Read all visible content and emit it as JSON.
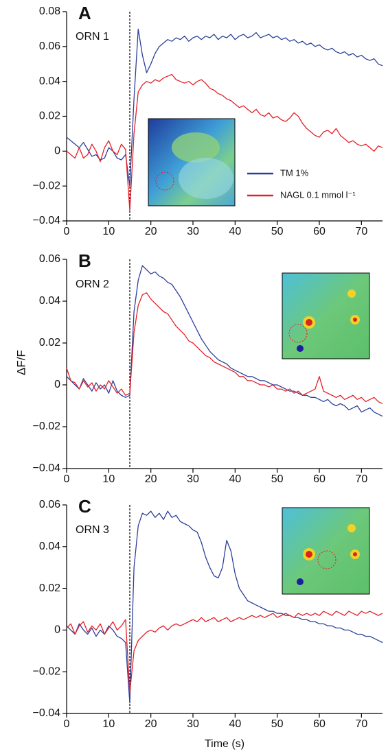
{
  "chart_data": [
    {
      "type": "line",
      "panel_label": "A",
      "annotation": "ORN 1",
      "x": [
        0,
        1,
        2,
        3,
        4,
        5,
        6,
        7,
        8,
        9,
        10,
        11,
        12,
        13,
        14,
        15,
        16,
        17,
        18,
        19,
        20,
        21,
        22,
        23,
        24,
        25,
        26,
        27,
        28,
        29,
        30,
        31,
        32,
        33,
        34,
        35,
        36,
        37,
        38,
        39,
        40,
        41,
        42,
        43,
        44,
        45,
        46,
        47,
        48,
        49,
        50,
        51,
        52,
        53,
        54,
        55,
        56,
        57,
        58,
        59,
        60,
        61,
        62,
        63,
        64,
        65,
        66,
        67,
        68,
        69,
        70,
        71,
        72,
        73,
        74,
        75
      ],
      "xlim": [
        0,
        75
      ],
      "xticks": [
        0,
        10,
        20,
        30,
        40,
        50,
        60,
        70
      ],
      "ylim": [
        -0.04,
        0.08
      ],
      "yticks": [
        {
          "value": -0.04,
          "label": "−0.04"
        },
        {
          "value": -0.02,
          "label": "−0.02"
        },
        0,
        0.02,
        0.04,
        0.06,
        0.08
      ],
      "vline": 15,
      "series": [
        {
          "name": "TM 1%",
          "color": "#2a3f9a",
          "values": [
            0.008,
            0.006,
            0.004,
            0.002,
            0.005,
            0.001,
            -0.003,
            -0.002,
            -0.005,
            -0.004,
            0.002,
            0,
            -0.004,
            -0.005,
            -0.002,
            -0.02,
            0.03,
            0.07,
            0.055,
            0.045,
            0.05,
            0.056,
            0.06,
            0.062,
            0.064,
            0.063,
            0.065,
            0.064,
            0.066,
            0.063,
            0.065,
            0.066,
            0.064,
            0.066,
            0.065,
            0.067,
            0.064,
            0.066,
            0.065,
            0.067,
            0.064,
            0.066,
            0.067,
            0.065,
            0.066,
            0.068,
            0.065,
            0.066,
            0.067,
            0.065,
            0.066,
            0.064,
            0.065,
            0.063,
            0.064,
            0.062,
            0.063,
            0.061,
            0.062,
            0.06,
            0.061,
            0.059,
            0.058,
            0.059,
            0.057,
            0.056,
            0.057,
            0.055,
            0.056,
            0.054,
            0.055,
            0.053,
            0.052,
            0.053,
            0.05,
            0.049
          ]
        },
        {
          "name": "NAGL 0.1 mmol l⁻¹",
          "color": "#e41e26",
          "values": [
            0,
            -0.002,
            -0.004,
            0.002,
            -0.004,
            -0.002,
            0.004,
            0,
            -0.006,
            0.002,
            0.006,
            0,
            -0.002,
            0.004,
            0.001,
            -0.034,
            0.01,
            0.034,
            0.038,
            0.04,
            0.039,
            0.041,
            0.04,
            0.042,
            0.043,
            0.044,
            0.041,
            0.04,
            0.039,
            0.04,
            0.038,
            0.04,
            0.041,
            0.039,
            0.036,
            0.035,
            0.033,
            0.032,
            0.03,
            0.029,
            0.027,
            0.025,
            0.026,
            0.024,
            0.022,
            0.024,
            0.021,
            0.02,
            0.022,
            0.019,
            0.02,
            0.018,
            0.017,
            0.019,
            0.022,
            0.02,
            0.016,
            0.013,
            0.011,
            0.009,
            0.008,
            0.011,
            0.012,
            0.01,
            0.013,
            0.009,
            0.007,
            0.005,
            0.006,
            0.004,
            0.003,
            0.004,
            0.002,
            0,
            0.003,
            0.002
          ]
        }
      ]
    },
    {
      "type": "line",
      "panel_label": "B",
      "annotation": "ORN 2",
      "ylabel": "ΔF/F",
      "x": [
        0,
        1,
        2,
        3,
        4,
        5,
        6,
        7,
        8,
        9,
        10,
        11,
        12,
        13,
        14,
        15,
        16,
        17,
        18,
        19,
        20,
        21,
        22,
        23,
        24,
        25,
        26,
        27,
        28,
        29,
        30,
        31,
        32,
        33,
        34,
        35,
        36,
        37,
        38,
        39,
        40,
        41,
        42,
        43,
        44,
        45,
        46,
        47,
        48,
        49,
        50,
        51,
        52,
        53,
        54,
        55,
        56,
        57,
        58,
        59,
        60,
        61,
        62,
        63,
        64,
        65,
        66,
        67,
        68,
        69,
        70,
        71,
        72,
        73,
        74,
        75
      ],
      "xlim": [
        0,
        75
      ],
      "xticks": [
        0,
        10,
        20,
        30,
        40,
        50,
        60,
        70
      ],
      "ylim": [
        -0.04,
        0.06
      ],
      "yticks": [
        {
          "value": -0.04,
          "label": "−0.04"
        },
        {
          "value": -0.02,
          "label": "−0.02"
        },
        0,
        0.02,
        0.04,
        0.06
      ],
      "vline": 15,
      "series": [
        {
          "color": "#2a3f9a",
          "values": [
            0.004,
            0.002,
            0,
            -0.002,
            0.003,
            0,
            -0.003,
            0.001,
            -0.002,
            0,
            -0.004,
            0.002,
            -0.003,
            -0.005,
            -0.006,
            -0.005,
            0.035,
            0.05,
            0.057,
            0.055,
            0.053,
            0.054,
            0.052,
            0.051,
            0.049,
            0.048,
            0.045,
            0.042,
            0.038,
            0.034,
            0.03,
            0.026,
            0.022,
            0.019,
            0.016,
            0.014,
            0.012,
            0.011,
            0.01,
            0.008,
            0.007,
            0.006,
            0.005,
            0.004,
            0.004,
            0.003,
            0.002,
            0.002,
            0.001,
            0,
            0,
            -0.001,
            -0.002,
            -0.003,
            -0.003,
            -0.004,
            -0.005,
            -0.005,
            -0.006,
            -0.006,
            -0.007,
            -0.008,
            -0.007,
            -0.009,
            -0.01,
            -0.009,
            -0.01,
            -0.012,
            -0.011,
            -0.01,
            -0.013,
            -0.012,
            -0.011,
            -0.013,
            -0.014,
            -0.015
          ]
        },
        {
          "color": "#e41e26",
          "values": [
            0.008,
            0.002,
            0.001,
            -0.002,
            0.002,
            -0.001,
            0.001,
            -0.003,
            0,
            -0.002,
            0.002,
            -0.001,
            -0.004,
            -0.002,
            -0.005,
            -0.004,
            0.025,
            0.038,
            0.043,
            0.044,
            0.041,
            0.039,
            0.037,
            0.035,
            0.034,
            0.031,
            0.028,
            0.026,
            0.024,
            0.021,
            0.02,
            0.018,
            0.016,
            0.014,
            0.013,
            0.011,
            0.01,
            0.009,
            0.008,
            0.007,
            0.006,
            0.004,
            0.004,
            0.002,
            0.002,
            0.001,
            0,
            0,
            -0.001,
            0,
            -0.002,
            -0.002,
            -0.003,
            -0.002,
            -0.004,
            -0.003,
            -0.005,
            -0.004,
            -0.003,
            -0.002,
            0.004,
            -0.003,
            -0.004,
            -0.005,
            -0.006,
            -0.005,
            -0.007,
            -0.006,
            -0.005,
            -0.007,
            -0.006,
            -0.008,
            -0.007,
            -0.006,
            -0.008,
            -0.009
          ]
        }
      ]
    },
    {
      "type": "line",
      "panel_label": "C",
      "annotation": "ORN 3",
      "xlabel": "Time (s)",
      "x": [
        0,
        1,
        2,
        3,
        4,
        5,
        6,
        7,
        8,
        9,
        10,
        11,
        12,
        13,
        14,
        15,
        16,
        17,
        18,
        19,
        20,
        21,
        22,
        23,
        24,
        25,
        26,
        27,
        28,
        29,
        30,
        31,
        32,
        33,
        34,
        35,
        36,
        37,
        38,
        39,
        40,
        41,
        42,
        43,
        44,
        45,
        46,
        47,
        48,
        49,
        50,
        51,
        52,
        53,
        54,
        55,
        56,
        57,
        58,
        59,
        60,
        61,
        62,
        63,
        64,
        65,
        66,
        67,
        68,
        69,
        70,
        71,
        72,
        73,
        74,
        75
      ],
      "xlim": [
        0,
        75
      ],
      "xticks": [
        0,
        10,
        20,
        30,
        40,
        50,
        60,
        70
      ],
      "ylim": [
        -0.04,
        0.06
      ],
      "yticks": [
        {
          "value": -0.04,
          "label": "−0.04"
        },
        {
          "value": -0.02,
          "label": "−0.02"
        },
        0,
        0.02,
        0.04,
        0.06
      ],
      "vline": 15,
      "series": [
        {
          "color": "#2a3f9a",
          "values": [
            0.002,
            0,
            -0.002,
            0.003,
            0,
            -0.002,
            0.001,
            -0.003,
            0,
            -0.002,
            0.002,
            0,
            -0.003,
            -0.004,
            -0.006,
            -0.035,
            0.03,
            0.05,
            0.056,
            0.055,
            0.057,
            0.054,
            0.056,
            0.053,
            0.057,
            0.054,
            0.055,
            0.052,
            0.051,
            0.05,
            0.048,
            0.047,
            0.042,
            0.035,
            0.03,
            0.026,
            0.025,
            0.03,
            0.043,
            0.038,
            0.027,
            0.02,
            0.017,
            0.014,
            0.013,
            0.012,
            0.011,
            0.01,
            0.009,
            0.009,
            0.008,
            0.008,
            0.007,
            0.007,
            0.006,
            0.006,
            0.005,
            0.005,
            0.004,
            0.004,
            0.003,
            0.003,
            0.002,
            0.002,
            0.001,
            0.001,
            0,
            0,
            -0.001,
            -0.002,
            -0.002,
            -0.003,
            -0.003,
            -0.004,
            -0.005,
            -0.006
          ]
        },
        {
          "color": "#e41e26",
          "values": [
            0.001,
            0.003,
            -0.002,
            0.002,
            0.004,
            -0.001,
            0.002,
            0,
            0.003,
            -0.002,
            0.001,
            0.004,
            0,
            0.002,
            0.005,
            -0.03,
            -0.01,
            -0.005,
            -0.003,
            -0.001,
            0,
            -0.001,
            0.001,
            0.002,
            0,
            0.002,
            0.003,
            0.002,
            0.003,
            0.004,
            0.005,
            0.004,
            0.006,
            0.004,
            0.005,
            0.006,
            0.004,
            0.005,
            0.006,
            0.004,
            0.005,
            0.006,
            0.005,
            0.006,
            0.007,
            0.006,
            0.007,
            0.006,
            0.007,
            0.008,
            0.006,
            0.007,
            0.008,
            0.007,
            0.006,
            0.008,
            0.007,
            0.008,
            0.007,
            0.008,
            0.007,
            0.009,
            0.008,
            0.007,
            0.009,
            0.008,
            0.007,
            0.009,
            0.008,
            0.007,
            0.009,
            0.008,
            0.009,
            0.008,
            0.007,
            0.008
          ]
        }
      ]
    }
  ]
}
